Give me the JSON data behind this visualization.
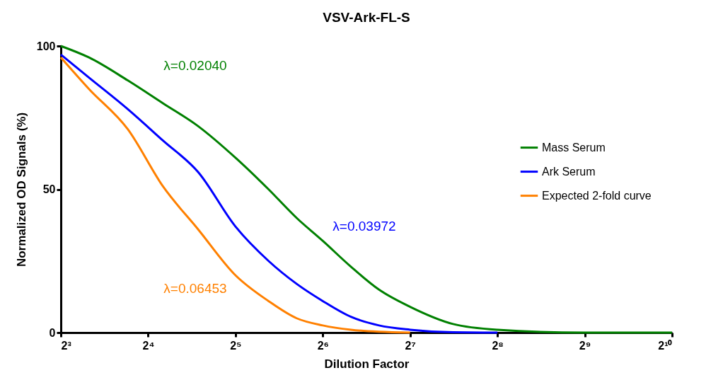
{
  "chart_data": {
    "type": "line",
    "title": "VSV-Ark-FL-S",
    "xlabel": "Dilution Factor",
    "ylabel": "Normalized OD Signals (%)",
    "log": "x",
    "xlim": [
      8,
      1024
    ],
    "xticks": [
      {
        "value": 8,
        "label": "2³"
      },
      {
        "value": 16,
        "label": "2⁴"
      },
      {
        "value": 32,
        "label": "2⁵"
      },
      {
        "value": 64,
        "label": "2⁶"
      },
      {
        "value": 128,
        "label": "2⁷"
      },
      {
        "value": 256,
        "label": "2⁸"
      },
      {
        "value": 512,
        "label": "2⁹"
      },
      {
        "value": 1024,
        "label": "2¹⁰"
      }
    ],
    "ylim": [
      0,
      100
    ],
    "yticks": [
      0,
      50,
      100
    ],
    "grid": false,
    "legend": "right",
    "marker": "none",
    "line_style": "solid",
    "series": [
      {
        "name": "Mass Serum",
        "color": "#008000",
        "x": [
          8,
          10,
          13.6,
          18,
          23.8,
          32,
          41.6,
          52,
          64,
          80,
          100,
          128,
          180,
          256,
          512,
          1024
        ],
        "values": [
          100,
          96,
          88,
          80,
          72,
          61,
          50,
          40,
          32,
          23,
          15,
          9,
          3,
          1,
          0,
          0
        ]
      },
      {
        "name": "Ark Serum",
        "color": "#0000ff",
        "x": [
          8,
          10,
          13.6,
          18,
          23.8,
          32,
          41.6,
          52,
          64,
          80,
          100,
          128,
          180,
          256
        ],
        "values": [
          97,
          89,
          78,
          67,
          56,
          37,
          25,
          17,
          11,
          5.5,
          2.5,
          1,
          0.1,
          0
        ]
      },
      {
        "name": "Expected 2-fold curve",
        "color": "#ff8000",
        "x": [
          8,
          10,
          13.6,
          18,
          23.8,
          32,
          41.6,
          52,
          64,
          80,
          100,
          128
        ],
        "values": [
          96,
          85,
          71,
          51,
          36,
          20,
          11,
          5,
          2.5,
          1,
          0.3,
          0
        ]
      }
    ],
    "annotations": [
      "λ=0.02040",
      "λ=0.03972",
      "λ=0.06453"
    ]
  }
}
